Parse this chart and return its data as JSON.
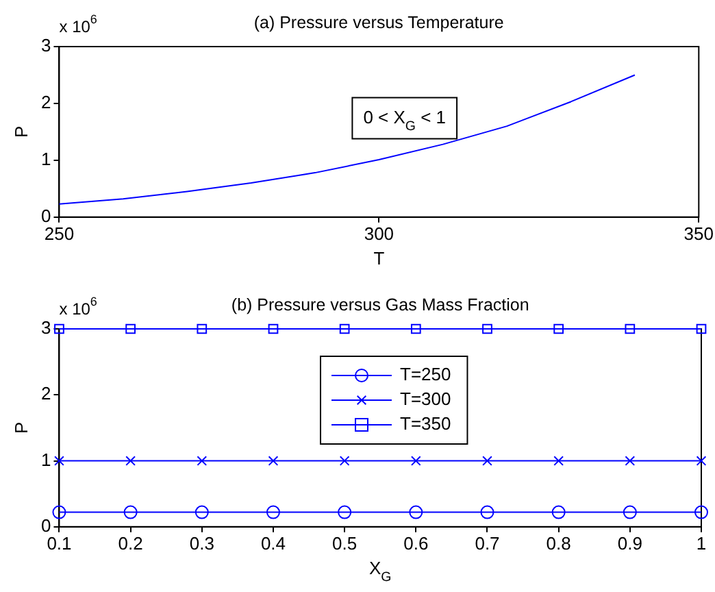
{
  "chart_data": [
    {
      "type": "line",
      "title": "(a) Pressure versus Temperature",
      "xlabel": "T",
      "ylabel": "P",
      "annotations": [
        "x 10$^{6}$",
        "0 < X$_{G}$ < 1"
      ],
      "x": [
        250,
        260,
        270,
        280,
        290,
        300,
        310,
        320,
        330,
        340
      ],
      "series": [
        {
          "color": "#0000ff",
          "values": [
            0.23,
            0.32,
            0.45,
            0.6,
            0.78,
            1.01,
            1.28,
            1.6,
            2.03,
            2.5
          ]
        }
      ],
      "xlim": [
        250,
        350
      ],
      "xticks": [
        250,
        300,
        350
      ],
      "ylim": [
        0,
        3
      ],
      "yticks": [
        0,
        1,
        2,
        3
      ],
      "grid": false,
      "legend": false,
      "marker": "none",
      "line_style": "solid"
    },
    {
      "type": "line",
      "title": "(b) Pressure versus Gas Mass Fraction",
      "xlabel": "X$_{G}$",
      "ylabel": "P",
      "annotations": [
        "x 10$^{6}$"
      ],
      "x": [
        0.1,
        0.2,
        0.3,
        0.4,
        0.5,
        0.6,
        0.7,
        0.8,
        0.9,
        1
      ],
      "series": [
        {
          "name": "T=250",
          "color": "#0000ff",
          "marker": "circle",
          "values": [
            0.22,
            0.22,
            0.22,
            0.22,
            0.22,
            0.22,
            0.22,
            0.22,
            0.22,
            0.22
          ]
        },
        {
          "name": "T=300",
          "color": "#0000ff",
          "marker": "cross",
          "values": [
            1,
            1,
            1,
            1,
            1,
            1,
            1,
            1,
            1,
            1
          ]
        },
        {
          "name": "T=350",
          "color": "#0000ff",
          "marker": "square",
          "values": [
            3,
            3,
            3,
            3,
            3,
            3,
            3,
            3,
            3,
            3
          ]
        }
      ],
      "xlim": [
        0.1,
        1
      ],
      "xticks": [
        0.1,
        0.2,
        0.3,
        0.4,
        0.5,
        0.6,
        0.7,
        0.8,
        0.9,
        1
      ],
      "ylim": [
        0,
        3
      ],
      "yticks": [
        0,
        1,
        2,
        3
      ],
      "grid": false,
      "legend": "top",
      "line_style": "solid"
    }
  ]
}
